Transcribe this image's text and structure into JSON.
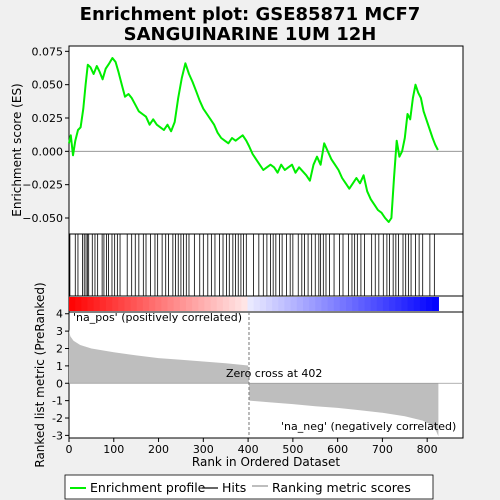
{
  "title_line1": "Enrichment plot: GSE85871 MCF7",
  "title_line2": "SANGUINARINE 1UM 12H",
  "chart_data": {
    "type": "line",
    "panels": {
      "es": {
        "ylabel": "Enrichment score (ES)",
        "ylim": [
          -0.062,
          0.079
        ],
        "yticks": [
          -0.05,
          -0.025,
          0.0,
          0.025,
          0.05,
          0.075
        ],
        "ytick_labels": [
          "−0.050",
          "−0.025",
          "0.000",
          "0.025",
          "0.050",
          "0.075"
        ],
        "line_color": "#00ee00",
        "profile": [
          [
            0,
            0.006
          ],
          [
            4,
            0.012
          ],
          [
            9,
            -0.003
          ],
          [
            14,
            0.008
          ],
          [
            20,
            0.016
          ],
          [
            26,
            0.018
          ],
          [
            32,
            0.032
          ],
          [
            37,
            0.05
          ],
          [
            42,
            0.065
          ],
          [
            48,
            0.063
          ],
          [
            55,
            0.058
          ],
          [
            62,
            0.064
          ],
          [
            68,
            0.06
          ],
          [
            75,
            0.054
          ],
          [
            82,
            0.062
          ],
          [
            90,
            0.066
          ],
          [
            97,
            0.07
          ],
          [
            104,
            0.067
          ],
          [
            110,
            0.06
          ],
          [
            118,
            0.05
          ],
          [
            125,
            0.041
          ],
          [
            133,
            0.043
          ],
          [
            140,
            0.04
          ],
          [
            148,
            0.035
          ],
          [
            156,
            0.03
          ],
          [
            164,
            0.028
          ],
          [
            172,
            0.026
          ],
          [
            180,
            0.02
          ],
          [
            188,
            0.024
          ],
          [
            196,
            0.02
          ],
          [
            204,
            0.018
          ],
          [
            212,
            0.016
          ],
          [
            220,
            0.02
          ],
          [
            228,
            0.015
          ],
          [
            236,
            0.022
          ],
          [
            244,
            0.04
          ],
          [
            252,
            0.055
          ],
          [
            260,
            0.066
          ],
          [
            268,
            0.058
          ],
          [
            276,
            0.052
          ],
          [
            284,
            0.045
          ],
          [
            292,
            0.038
          ],
          [
            300,
            0.032
          ],
          [
            308,
            0.028
          ],
          [
            316,
            0.024
          ],
          [
            324,
            0.02
          ],
          [
            332,
            0.014
          ],
          [
            340,
            0.01
          ],
          [
            348,
            0.008
          ],
          [
            356,
            0.006
          ],
          [
            364,
            0.01
          ],
          [
            372,
            0.008
          ],
          [
            380,
            0.01
          ],
          [
            388,
            0.012
          ],
          [
            396,
            0.008
          ],
          [
            402,
            0.004
          ],
          [
            410,
            -0.002
          ],
          [
            418,
            -0.006
          ],
          [
            426,
            -0.01
          ],
          [
            434,
            -0.014
          ],
          [
            442,
            -0.012
          ],
          [
            450,
            -0.01
          ],
          [
            458,
            -0.012
          ],
          [
            466,
            -0.016
          ],
          [
            474,
            -0.01
          ],
          [
            482,
            -0.014
          ],
          [
            490,
            -0.012
          ],
          [
            498,
            -0.01
          ],
          [
            506,
            -0.016
          ],
          [
            514,
            -0.012
          ],
          [
            522,
            -0.015
          ],
          [
            530,
            -0.018
          ],
          [
            538,
            -0.022
          ],
          [
            546,
            -0.01
          ],
          [
            554,
            -0.004
          ],
          [
            562,
            -0.01
          ],
          [
            570,
            0.006
          ],
          [
            578,
            0.0
          ],
          [
            586,
            -0.006
          ],
          [
            594,
            -0.01
          ],
          [
            602,
            -0.014
          ],
          [
            610,
            -0.02
          ],
          [
            618,
            -0.024
          ],
          [
            626,
            -0.028
          ],
          [
            634,
            -0.024
          ],
          [
            642,
            -0.02
          ],
          [
            650,
            -0.024
          ],
          [
            658,
            -0.018
          ],
          [
            666,
            -0.03
          ],
          [
            674,
            -0.036
          ],
          [
            682,
            -0.04
          ],
          [
            690,
            -0.044
          ],
          [
            698,
            -0.046
          ],
          [
            706,
            -0.05
          ],
          [
            714,
            -0.053
          ],
          [
            720,
            -0.05
          ],
          [
            726,
            -0.02
          ],
          [
            732,
            0.008
          ],
          [
            738,
            -0.004
          ],
          [
            744,
            0.0
          ],
          [
            750,
            0.01
          ],
          [
            756,
            0.028
          ],
          [
            762,
            0.024
          ],
          [
            768,
            0.04
          ],
          [
            774,
            0.05
          ],
          [
            780,
            0.044
          ],
          [
            786,
            0.04
          ],
          [
            792,
            0.03
          ],
          [
            800,
            0.022
          ],
          [
            806,
            0.016
          ],
          [
            812,
            0.01
          ],
          [
            818,
            0.005
          ],
          [
            824,
            0.001
          ]
        ]
      },
      "hits": {
        "positions": [
          2,
          14,
          20,
          30,
          34,
          38,
          41,
          44,
          52,
          58,
          64,
          74,
          78,
          84,
          88,
          96,
          102,
          108,
          114,
          130,
          140,
          148,
          156,
          166,
          172,
          182,
          192,
          198,
          208,
          216,
          222,
          232,
          238,
          244,
          250,
          256,
          262,
          268,
          280,
          292,
          300,
          310,
          318,
          326,
          336,
          344,
          352,
          358,
          366,
          372,
          378,
          384,
          390,
          396,
          412,
          424,
          434,
          442,
          450,
          456,
          462,
          470,
          476,
          486,
          494,
          500,
          512,
          520,
          526,
          534,
          542,
          550,
          558,
          562,
          568,
          574,
          582,
          592,
          604,
          612,
          624,
          632,
          638,
          644,
          652,
          660,
          676,
          684,
          692,
          702,
          710,
          716,
          724,
          730,
          736,
          746,
          752,
          758,
          764,
          774,
          782,
          790,
          806,
          816
        ]
      },
      "ranked": {
        "ylabel": "Ranked list metric (PreRanked)",
        "xlabel": "Rank in Ordered Dataset",
        "ylim": [
          -3.15,
          4.1
        ],
        "yticks": [
          -3,
          -2,
          -1,
          0,
          1,
          2,
          3,
          4
        ],
        "xlim": [
          0,
          880
        ],
        "xticks": [
          0,
          100,
          200,
          300,
          400,
          500,
          600,
          700,
          800
        ],
        "n_genes": 825,
        "zero_cross": 402,
        "zero_cross_label": "Zero cross at 402",
        "pos_label": "'na_pos' (positively correlated)",
        "neg_label": "'na_neg' (negatively correlated)",
        "metric_profile": [
          [
            0,
            3.1
          ],
          [
            3,
            2.7
          ],
          [
            10,
            2.45
          ],
          [
            25,
            2.2
          ],
          [
            50,
            2.0
          ],
          [
            100,
            1.78
          ],
          [
            150,
            1.6
          ],
          [
            200,
            1.45
          ],
          [
            250,
            1.35
          ],
          [
            300,
            1.25
          ],
          [
            350,
            1.15
          ],
          [
            400,
            1.02
          ],
          [
            402,
            0.0
          ],
          [
            403,
            -1.0
          ],
          [
            450,
            -1.1
          ],
          [
            500,
            -1.2
          ],
          [
            550,
            -1.32
          ],
          [
            600,
            -1.42
          ],
          [
            650,
            -1.55
          ],
          [
            700,
            -1.7
          ],
          [
            750,
            -1.9
          ],
          [
            790,
            -2.15
          ],
          [
            810,
            -2.4
          ],
          [
            820,
            -2.75
          ],
          [
            825,
            -3.05
          ]
        ]
      }
    },
    "legend": [
      "Enrichment profile",
      "Hits",
      "Ranking metric scores"
    ],
    "legend_placement": "bottom"
  },
  "colors": {
    "es_line": "#00ee00",
    "hit": "#000000",
    "metric_fill": "#bebebe",
    "pos_text": "#cc0000",
    "neg_text": "#0000cc",
    "heat_red": "#ff0000",
    "heat_blue": "#0000ff"
  }
}
